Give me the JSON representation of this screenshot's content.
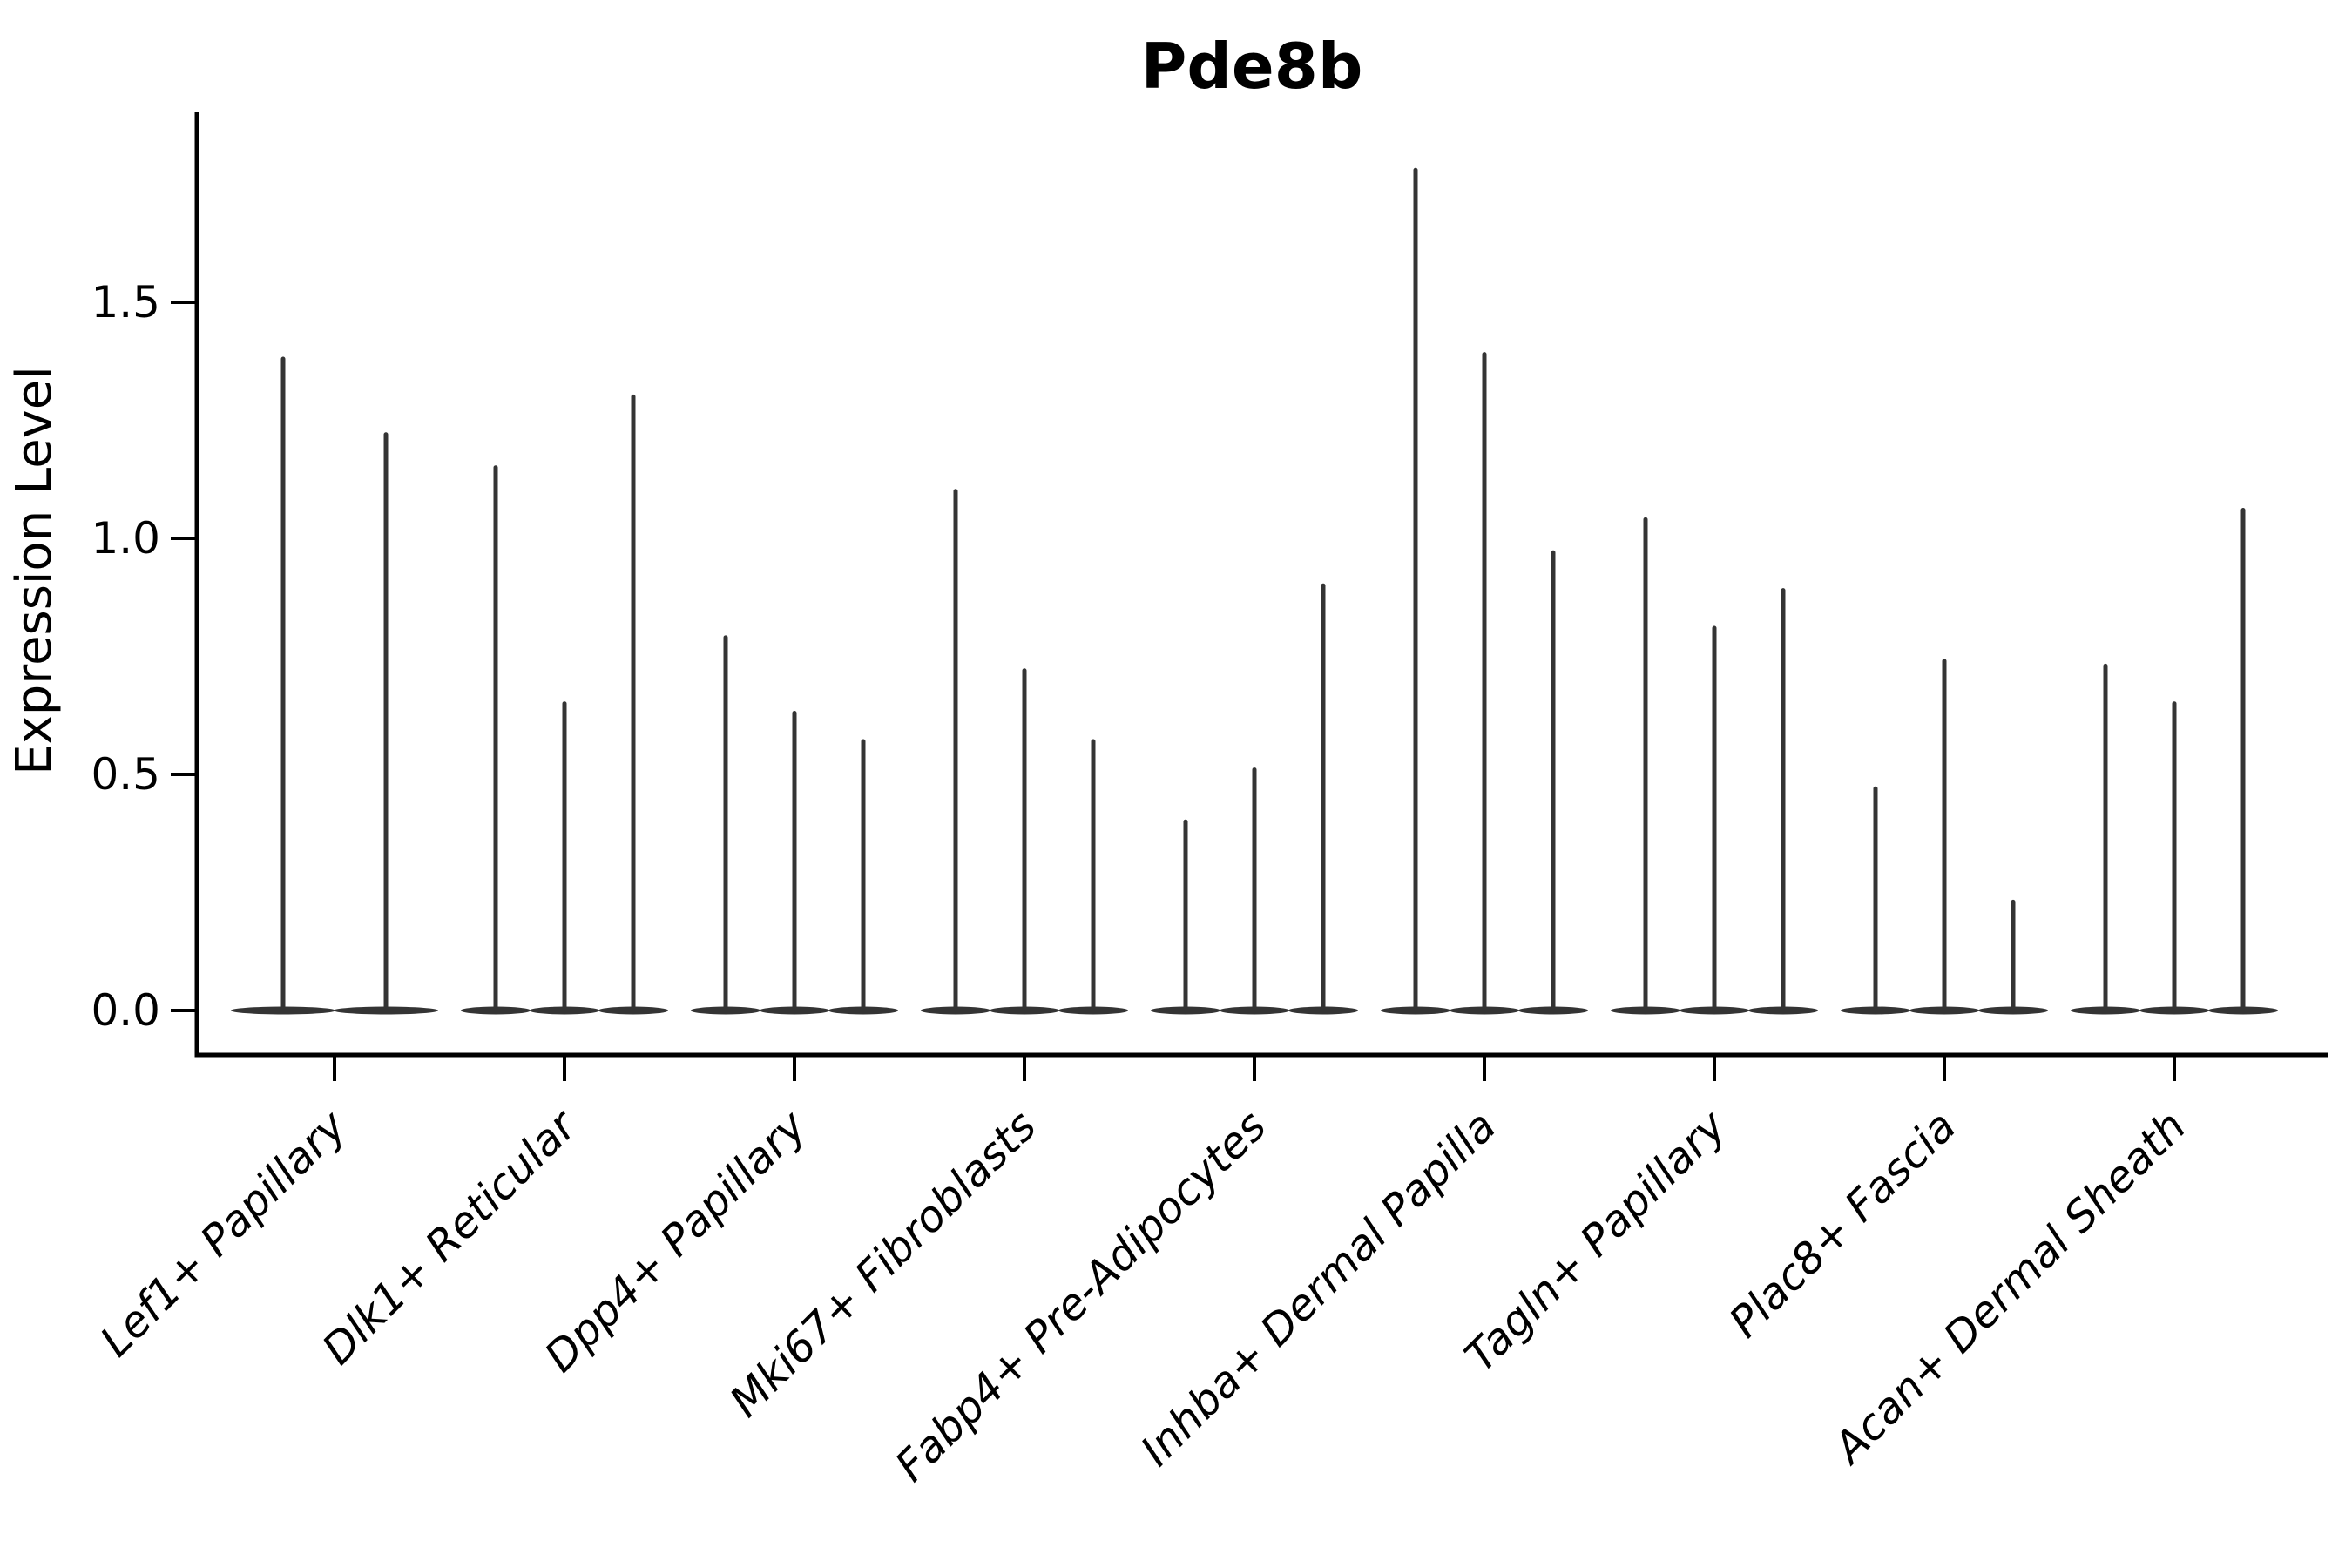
{
  "title": "Pde8b",
  "yaxis": {
    "label": "Expression Level",
    "tick_labels": [
      "0.0",
      "0.5",
      "1.0",
      "1.5"
    ]
  },
  "chart_data": {
    "type": "violin",
    "title": "Pde8b",
    "xlabel": "",
    "ylabel": "Expression Level",
    "ylim": [
      0,
      1.88
    ],
    "yticks": [
      0,
      0.5,
      1.0,
      1.5
    ],
    "grid": false,
    "legend": "none",
    "style": "zero-inflated expression violins: wide flat lens of density at 0 with a thin vertical spike reaching each violin's maximum value",
    "categories": [
      "Lef1+ Papillary",
      "Dlk1+ Reticular",
      "Dpp4+ Papillary",
      "Mki67+ Fibroblasts",
      "Fabp4+ Pre-Adipocytes",
      "Inhba+ Dermal Papilla",
      "Tagln+ Papillary",
      "Plac8+ Fascia",
      "Acan+ Dermal Sheath"
    ],
    "groups": [
      {
        "label": "Lef1+ Papillary",
        "violin_max": [
          1.38,
          1.22
        ]
      },
      {
        "label": "Dlk1+ Reticular",
        "violin_max": [
          1.15,
          0.65,
          1.3
        ]
      },
      {
        "label": "Dpp4+ Papillary",
        "violin_max": [
          0.79,
          0.63,
          0.57
        ]
      },
      {
        "label": "Mki67+ Fibroblasts",
        "violin_max": [
          1.1,
          0.72,
          0.57
        ]
      },
      {
        "label": "Fabp4+ Pre-Adipocytes",
        "violin_max": [
          0.4,
          0.51,
          0.9
        ]
      },
      {
        "label": "Inhba+ Dermal Papilla",
        "violin_max": [
          1.78,
          1.39,
          0.97
        ]
      },
      {
        "label": "Tagln+ Papillary",
        "violin_max": [
          1.04,
          0.81,
          0.89
        ]
      },
      {
        "label": "Plac8+ Fascia",
        "violin_max": [
          0.47,
          0.74,
          0.23
        ]
      },
      {
        "label": "Acan+ Dermal Sheath",
        "violin_max": [
          0.73,
          0.65,
          1.06
        ]
      }
    ],
    "colors": {
      "violin": "#343434",
      "axis": "#000000",
      "text": "#000000",
      "background": "#ffffff"
    }
  }
}
